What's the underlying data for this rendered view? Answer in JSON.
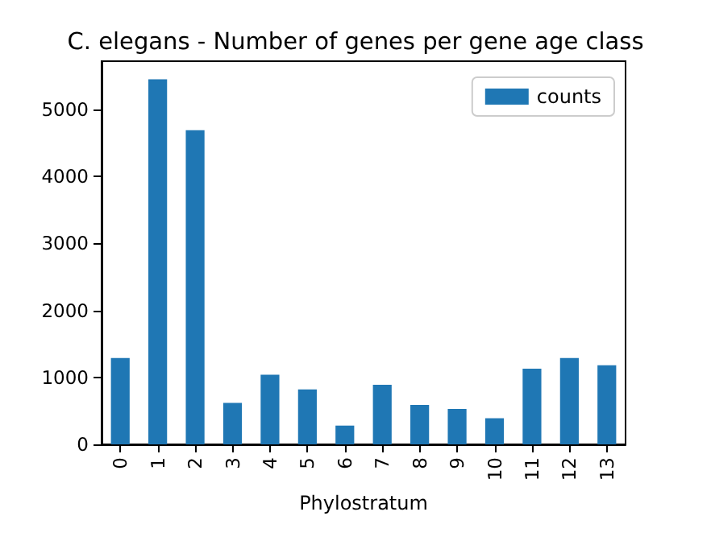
{
  "chart_data": {
    "type": "bar",
    "title": "C. elegans - Number of genes per gene age class",
    "xlabel": "Phylostratum",
    "categories": [
      "0",
      "1",
      "2",
      "3",
      "4",
      "5",
      "6",
      "7",
      "8",
      "9",
      "10",
      "11",
      "12",
      "13"
    ],
    "series": [
      {
        "name": "counts",
        "color": "#1f77b4",
        "values": [
          1290,
          5450,
          4690,
          620,
          1040,
          820,
          280,
          890,
          590,
          530,
          390,
          1130,
          1290,
          1180
        ]
      }
    ],
    "ylim": [
      0,
      5720
    ],
    "yticks": [
      0,
      1000,
      2000,
      3000,
      4000,
      5000
    ],
    "grid": false,
    "legend": "top right"
  }
}
